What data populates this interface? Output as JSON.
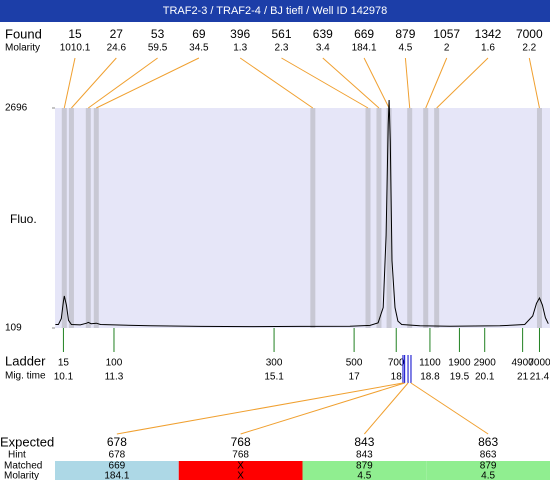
{
  "chart_data": {
    "type": "electropherogram",
    "title": "TRAF2-3 / TRAF2-4 / BJ tiefl / Well ID 142978",
    "found_label": "Found",
    "molarity_label": "Molarity",
    "y_label": "Fluo.",
    "ladder_label": "Ladder",
    "mig_time_label": "Mig. time",
    "ylim": [
      109,
      2696
    ],
    "yticks": [
      109,
      2696
    ],
    "xlim": [
      9.9,
      21.65
    ],
    "plot_color": "#e6e6f8",
    "band_color": "#c8c8d4",
    "link_color": "#f0a030",
    "ladder_color": "#208020",
    "marker_color": "#0000cc",
    "trace": {
      "color": "#000000",
      "x": [
        9.91,
        9.98,
        10.05,
        10.1,
        10.12,
        10.17,
        10.22,
        10.29,
        10.5,
        10.65,
        10.69,
        10.76,
        10.88,
        10.98,
        12.16,
        13.35,
        14.53,
        15.72,
        16.9,
        17.38,
        17.57,
        17.69,
        17.76,
        17.81,
        17.83,
        17.86,
        17.9,
        17.97,
        18.04,
        18.13,
        18.56,
        19.27,
        20.46,
        21.05,
        21.24,
        21.33,
        21.4,
        21.47,
        21.54,
        21.61
      ],
      "values": [
        150,
        150,
        220,
        420,
        485,
        380,
        200,
        150,
        145,
        165,
        175,
        160,
        165,
        150,
        135,
        128,
        125,
        128,
        130,
        140,
        170,
        350,
        1200,
        2500,
        2790,
        2300,
        900,
        350,
        190,
        150,
        135,
        130,
        135,
        150,
        250,
        400,
        462,
        380,
        230,
        160
      ]
    },
    "peaks": {
      "sizes": [
        15,
        27,
        53,
        69,
        396,
        561,
        639,
        669,
        879,
        1057,
        1342,
        7000
      ],
      "molarity": [
        1010.1,
        24.6,
        59.5,
        34.5,
        1.3,
        2.3,
        3.4,
        184.1,
        4.5,
        2,
        1.6,
        2.2
      ],
      "times": [
        10.12,
        10.29,
        10.69,
        10.88,
        16.02,
        17.33,
        17.59,
        17.83,
        18.32,
        18.7,
        18.96,
        21.4
      ]
    },
    "ladder": {
      "sizes": [
        15,
        100,
        300,
        500,
        700,
        1100,
        1900,
        2900,
        4900,
        7000
      ],
      "times": [
        10.1,
        11.3,
        15.1,
        17,
        18,
        18.8,
        19.5,
        20.1,
        21,
        21.4
      ]
    },
    "expected": {
      "label": "Expected",
      "hint_label": "Hint",
      "matched_label": "Matched",
      "molarity_label": "Molarity",
      "sizes": [
        678,
        768,
        843,
        863
      ],
      "times": [
        18.16,
        18.2,
        18.28,
        18.35
      ],
      "hint": [
        678,
        768,
        843,
        863
      ],
      "matched": [
        669,
        "X",
        879,
        879
      ],
      "molarity": [
        184.1,
        "X",
        4.5,
        4.5
      ],
      "colors": [
        "#add8e6",
        "#ff0000",
        "#90ee90",
        "#90ee90"
      ]
    }
  }
}
